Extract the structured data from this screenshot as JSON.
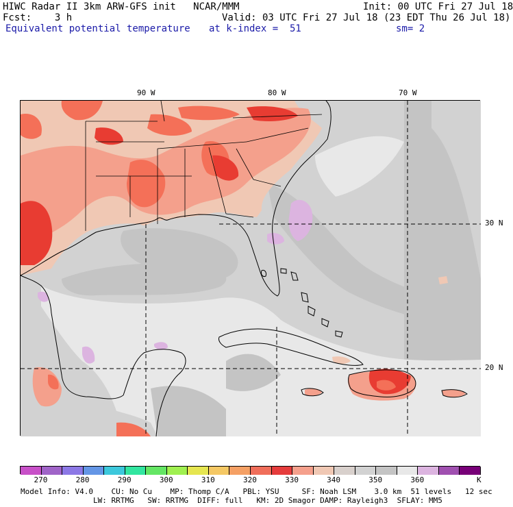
{
  "header": {
    "line1_left": "HIWC Radar II 3km ARW-GFS init   NCAR/MMM",
    "line1_right": "Init: 00 UTC Fri 27 Jul 18",
    "line2_left": "Fcst:    3 h",
    "line2_right": "Valid: 03 UTC Fri 27 Jul 18 (23 EDT Thu 26 Jul 18)",
    "line3_left": "Equivalent potential temperature",
    "line3_mid": "at k-index =  51",
    "line3_right": "sm= 2"
  },
  "map": {
    "lon_labels": [
      "90 W",
      "80 W",
      "70 W"
    ],
    "lat_labels": [
      "30 N",
      "20 N"
    ],
    "colors": {
      "ocean_gray": "#d2d2d2",
      "light_gray": "#e8e8e8",
      "mid_gray": "#c4c4c4",
      "tan": "#f0c8b4",
      "salmon": "#f4a08c",
      "red_orange": "#f47058",
      "red": "#e83c32",
      "lavender": "#dcb4e0",
      "purple": "#a050b0"
    }
  },
  "colorbar": {
    "labels": [
      "270",
      "280",
      "290",
      "300",
      "310",
      "320",
      "330",
      "340",
      "350",
      "360"
    ],
    "unit": "K",
    "colors": [
      "#c850c8",
      "#a064c8",
      "#8c78e6",
      "#6496e6",
      "#3cc8dc",
      "#32e6a0",
      "#64e664",
      "#a0f050",
      "#e6e650",
      "#f5c864",
      "#f5a064",
      "#f06e5a",
      "#e63c3c",
      "#f5a08c",
      "#f0c8b4",
      "#d8d0cc",
      "#d2d2d2",
      "#c4c4c4",
      "#e8e8e8",
      "#dcb4e0",
      "#a050b0",
      "#780078"
    ]
  },
  "footer": {
    "line1": "Model Info: V4.0    CU: No Cu    MP: Thomp C/A   PBL: YSU     SF: Noah LSM    3.0 km  51 levels   12 sec",
    "line2": "                LW: RRTMG   SW: RRTMG  DIFF: full   KM: 2D Smagor DAMP: Rayleigh3  SFLAY: MM5"
  }
}
